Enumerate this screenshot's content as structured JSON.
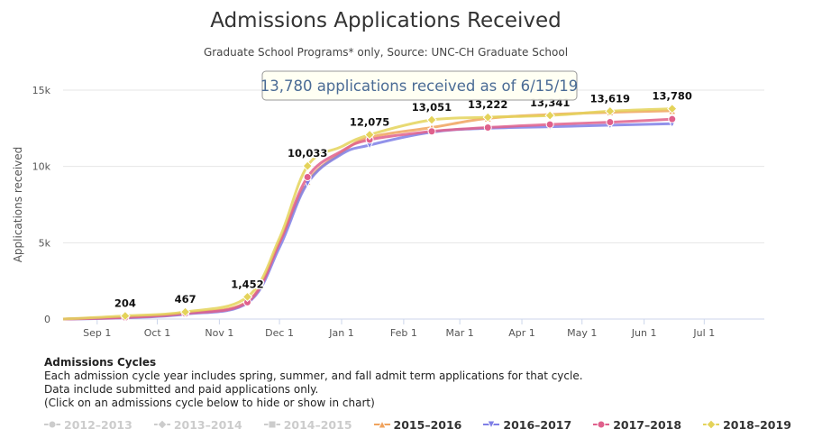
{
  "header": {
    "title": "Admissions Applications Received",
    "subtitle": "Graduate School Programs* only, Source: UNC-CH Graduate School"
  },
  "annotation": "13,780 applications received as of 6/15/19",
  "y_axis_label": "Applications received",
  "notes": {
    "heading": "Admissions Cycles",
    "line1": "Each admission cycle year includes spring, summer, and fall admit term applications for that cycle.",
    "line2": "Data include submitted and paid applications only.",
    "line3": "(Click on an admissions cycle below to hide or show in chart)"
  },
  "legend": [
    {
      "name": "2012–2013",
      "color": "#cccccc",
      "marker": "circle",
      "visible": false
    },
    {
      "name": "2013–2014",
      "color": "#cccccc",
      "marker": "diamond",
      "visible": false
    },
    {
      "name": "2014–2015",
      "color": "#cccccc",
      "marker": "square",
      "visible": false
    },
    {
      "name": "2015–2016",
      "color": "#f0a35e",
      "marker": "triangle",
      "visible": true
    },
    {
      "name": "2016–2017",
      "color": "#7f7fe6",
      "marker": "triangle-down",
      "visible": true
    },
    {
      "name": "2017–2018",
      "color": "#e0608c",
      "marker": "circle",
      "visible": true
    },
    {
      "name": "2018–2019",
      "color": "#e4d35a",
      "marker": "diamond",
      "visible": true
    }
  ],
  "chart_data": {
    "type": "line",
    "title": "Admissions Applications Received",
    "subtitle": "Graduate School Programs* only, Source: UNC-CH Graduate School",
    "ylabel": "Applications received",
    "xlabel": "",
    "x_ticks": [
      "Sep 1",
      "Oct 1",
      "Nov 1",
      "Dec 1",
      "Jan 1",
      "Feb 1",
      "Mar 1",
      "Apr 1",
      "May 1",
      "Jun 1",
      "Jul 1"
    ],
    "y_ticks": [
      "0",
      "5k",
      "10k",
      "15k"
    ],
    "ylim": [
      0,
      15000
    ],
    "xlim": [
      "Aug 15",
      "Jul 31"
    ],
    "grid": "horizontal",
    "legend_position": "bottom",
    "series": [
      {
        "name": "2015–2016",
        "color": "#f0a35e",
        "marker": "triangle",
        "points": [
          [
            "Aug 15",
            0
          ],
          [
            "Sep 15",
            120
          ],
          [
            "Oct 15",
            400
          ],
          [
            "Nov 15",
            1150
          ],
          [
            "Dec 1",
            5000
          ],
          [
            "Dec 15",
            9000
          ],
          [
            "Jan 1",
            10900
          ],
          [
            "Jan 15",
            11900
          ],
          [
            "Feb 15",
            12550
          ],
          [
            "Mar 15",
            13150
          ],
          [
            "Apr 15",
            13400
          ],
          [
            "May 15",
            13550
          ],
          [
            "Jun 15",
            13650
          ]
        ]
      },
      {
        "name": "2016–2017",
        "color": "#7f7fe6",
        "marker": "triangle-down",
        "points": [
          [
            "Aug 15",
            0
          ],
          [
            "Sep 15",
            80
          ],
          [
            "Oct 15",
            320
          ],
          [
            "Nov 15",
            1050
          ],
          [
            "Dec 1",
            4700
          ],
          [
            "Dec 15",
            8900
          ],
          [
            "Jan 1",
            10800
          ],
          [
            "Jan 15",
            11400
          ],
          [
            "Feb 15",
            12250
          ],
          [
            "Mar 15",
            12500
          ],
          [
            "Apr 15",
            12600
          ],
          [
            "May 15",
            12700
          ],
          [
            "Jun 15",
            12800
          ]
        ]
      },
      {
        "name": "2017–2018",
        "color": "#e0608c",
        "marker": "circle",
        "points": [
          [
            "Aug 15",
            0
          ],
          [
            "Sep 15",
            100
          ],
          [
            "Oct 15",
            360
          ],
          [
            "Nov 15",
            1100
          ],
          [
            "Dec 1",
            5000
          ],
          [
            "Dec 15",
            9300
          ],
          [
            "Jan 1",
            11000
          ],
          [
            "Jan 15",
            11750
          ],
          [
            "Feb 15",
            12300
          ],
          [
            "Mar 15",
            12550
          ],
          [
            "Apr 15",
            12750
          ],
          [
            "May 15",
            12900
          ],
          [
            "Jun 15",
            13100
          ]
        ]
      },
      {
        "name": "2018–2019",
        "color": "#e4d35a",
        "marker": "diamond",
        "points": [
          [
            "Aug 15",
            0
          ],
          [
            "Sep 15",
            204
          ],
          [
            "Oct 15",
            467
          ],
          [
            "Nov 15",
            1452
          ],
          [
            "Dec 1",
            5300
          ],
          [
            "Dec 15",
            10033
          ],
          [
            "Jan 1",
            11300
          ],
          [
            "Jan 15",
            12075
          ],
          [
            "Feb 15",
            13051
          ],
          [
            "Mar 15",
            13222
          ],
          [
            "Apr 15",
            13341
          ],
          [
            "May 15",
            13619
          ],
          [
            "Jun 15",
            13780
          ]
        ],
        "labels": [
          [
            "Sep 15",
            204
          ],
          [
            "Oct 15",
            467
          ],
          [
            "Nov 15",
            1452
          ],
          [
            "Dec 15",
            10033
          ],
          [
            "Jan 15",
            12075
          ],
          [
            "Feb 15",
            13051
          ],
          [
            "Mar 15",
            13222
          ],
          [
            "Apr 15",
            13341
          ],
          [
            "May 15",
            13619
          ],
          [
            "Jun 15",
            13780
          ]
        ]
      }
    ]
  }
}
